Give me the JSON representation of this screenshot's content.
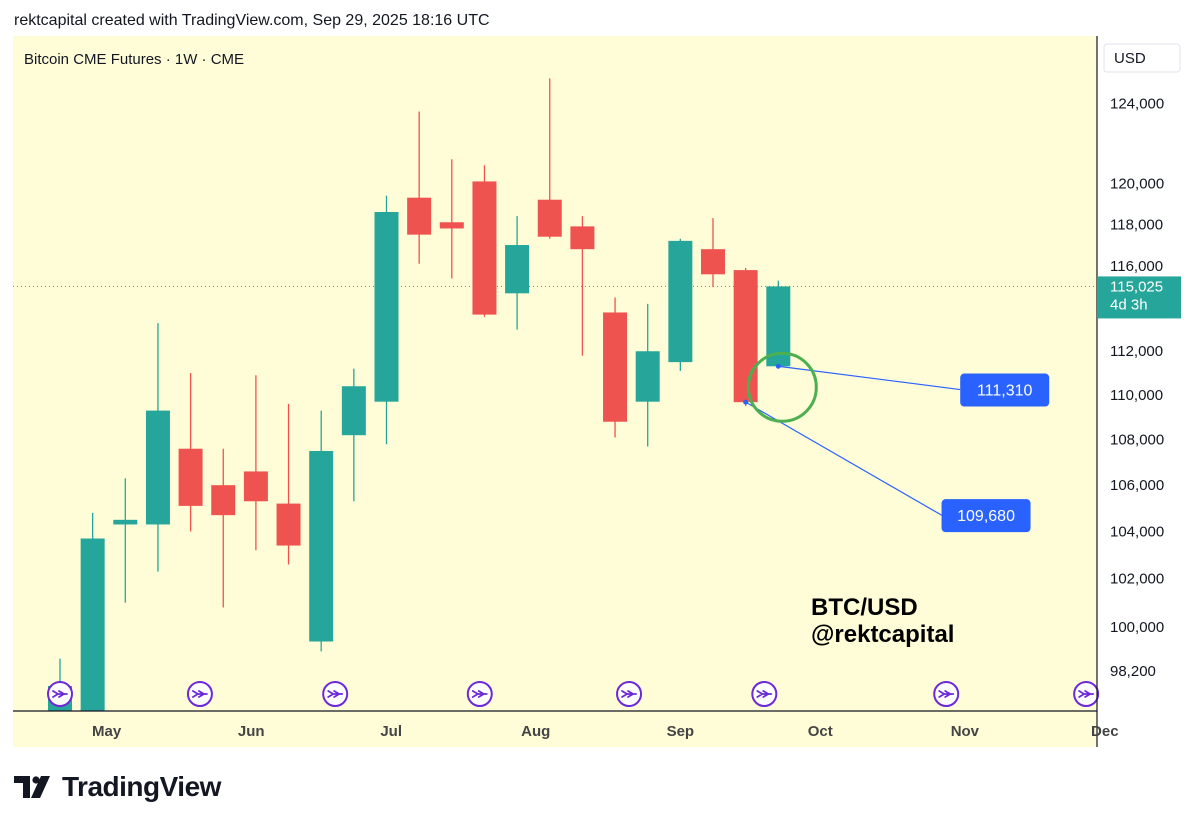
{
  "header": {
    "caption": "rektcapital created with TradingView.com, Sep 29, 2025 18:16 UTC"
  },
  "footer": {
    "brand": "TradingView",
    "logo_icon": "tradingview-logo-icon"
  },
  "colors": {
    "up": "#26a69a",
    "down": "#ef5350",
    "background": "#fffdd8",
    "label": "#2962ff",
    "circle": "#4caf50",
    "text": "#131722"
  },
  "chart_data": {
    "type": "candlestick",
    "title": "Bitcoin CME Futures · 1W · CME",
    "currency": "USD",
    "scale": "log",
    "ylim": [
      96600,
      127500
    ],
    "y_ticks": [
      98200,
      100000,
      102000,
      104000,
      106000,
      108000,
      110000,
      112000,
      116000,
      118000,
      120000,
      124000
    ],
    "y_tick_labels": [
      "98,200",
      "100,000",
      "102,000",
      "104,000",
      "106,000",
      "108,000",
      "110,000",
      "112,000",
      "116,000",
      "118,000",
      "120,000",
      "124,000"
    ],
    "x_ticks": [
      {
        "label": "May",
        "date": "2025-05-01"
      },
      {
        "label": "Jun",
        "date": "2025-06-01"
      },
      {
        "label": "Jul",
        "date": "2025-07-01"
      },
      {
        "label": "Aug",
        "date": "2025-08-01"
      },
      {
        "label": "Sep",
        "date": "2025-09-01"
      },
      {
        "label": "Oct",
        "date": "2025-10-01"
      },
      {
        "label": "Nov",
        "date": "2025-11-01"
      },
      {
        "label": "Dec",
        "date": "2025-12-01"
      }
    ],
    "candles": [
      {
        "date": "2025-04-21",
        "open": 96600,
        "high": 98700,
        "low": 96600,
        "close": 97600
      },
      {
        "date": "2025-04-28",
        "open": 96600,
        "high": 104800,
        "low": 96600,
        "close": 103700
      },
      {
        "date": "2025-05-05",
        "open": 104300,
        "high": 106300,
        "low": 101000,
        "close": 104500
      },
      {
        "date": "2025-05-12",
        "open": 104300,
        "high": 113300,
        "low": 102300,
        "close": 109300
      },
      {
        "date": "2025-05-19",
        "open": 107600,
        "high": 111000,
        "low": 104000,
        "close": 105100
      },
      {
        "date": "2025-05-26",
        "open": 106000,
        "high": 107600,
        "low": 100800,
        "close": 104700
      },
      {
        "date": "2025-06-02",
        "open": 106600,
        "high": 110900,
        "low": 103200,
        "close": 105300
      },
      {
        "date": "2025-06-09",
        "open": 105200,
        "high": 109600,
        "low": 102600,
        "close": 103400
      },
      {
        "date": "2025-06-16",
        "open": 99400,
        "high": 109300,
        "low": 99000,
        "close": 107500
      },
      {
        "date": "2025-06-23",
        "open": 108200,
        "high": 111200,
        "low": 105300,
        "close": 110400
      },
      {
        "date": "2025-06-30",
        "open": 109700,
        "high": 119400,
        "low": 107800,
        "close": 118600
      },
      {
        "date": "2025-07-07",
        "open": 119300,
        "high": 123600,
        "low": 116100,
        "close": 117500
      },
      {
        "date": "2025-07-14",
        "open": 118100,
        "high": 121200,
        "low": 115400,
        "close": 117800
      },
      {
        "date": "2025-07-21",
        "open": 120100,
        "high": 120900,
        "low": 113600,
        "close": 113700
      },
      {
        "date": "2025-07-28",
        "open": 114700,
        "high": 118400,
        "low": 113000,
        "close": 117000
      },
      {
        "date": "2025-08-04",
        "open": 119200,
        "high": 125300,
        "low": 117300,
        "close": 117400
      },
      {
        "date": "2025-08-11",
        "open": 117900,
        "high": 118400,
        "low": 111800,
        "close": 116800
      },
      {
        "date": "2025-08-18",
        "open": 113800,
        "high": 114500,
        "low": 108100,
        "close": 108800
      },
      {
        "date": "2025-08-25",
        "open": 109700,
        "high": 114200,
        "low": 107700,
        "close": 112000
      },
      {
        "date": "2025-09-01",
        "open": 111500,
        "high": 117300,
        "low": 111100,
        "close": 117200
      },
      {
        "date": "2025-09-08",
        "open": 116800,
        "high": 118300,
        "low": 115000,
        "close": 115600
      },
      {
        "date": "2025-09-15",
        "open": 115800,
        "high": 115900,
        "low": 109500,
        "close": 109680
      },
      {
        "date": "2025-09-22",
        "open": 111310,
        "high": 115300,
        "low": 111200,
        "close": 115025
      }
    ],
    "last_price": {
      "value": 115025,
      "label": "115,025",
      "countdown": "4d 3h"
    },
    "annotations": [
      {
        "text": "111,310",
        "value": 111310,
        "anchor_date": "2025-09-22",
        "label_date": "2025-10-31",
        "label_value": 110250
      },
      {
        "text": "109,680",
        "value": 109680,
        "anchor_date": "2025-09-15",
        "label_date": "2025-10-27",
        "label_value": 104700
      }
    ],
    "watermark": [
      "BTC/USD",
      "@rektcapital"
    ],
    "event_markers": [
      "2025-04-21",
      "2025-05-21",
      "2025-06-19",
      "2025-07-20",
      "2025-08-21",
      "2025-09-19",
      "2025-10-28",
      "2025-11-27"
    ],
    "event_icon": "dividend-arrow-icon"
  }
}
